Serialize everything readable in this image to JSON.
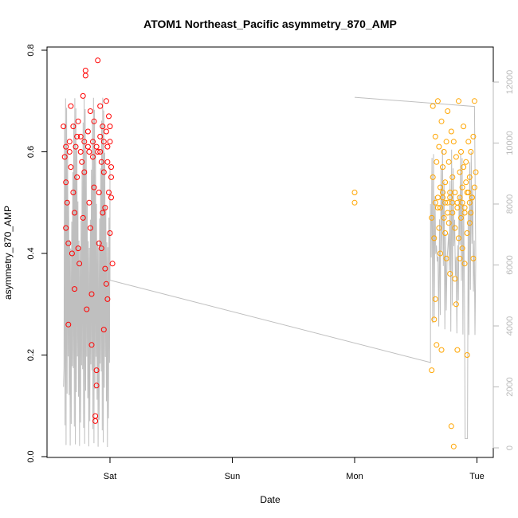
{
  "chart_data": {
    "type": "scatter",
    "title": "ATOM1 Northeast_Pacific asymmetry_870_AMP",
    "xlabel": "Date",
    "ylabel": "asymmetry_870_AMP",
    "x_ticks": [
      {
        "label": "Sat",
        "day": 1
      },
      {
        "label": "Sun",
        "day": 2
      },
      {
        "label": "Mon",
        "day": 3
      },
      {
        "label": "Tue",
        "day": 4
      }
    ],
    "xlim_days": [
      0.5,
      4.05
    ],
    "ylim": [
      0,
      0.8
    ],
    "y_ticks": [
      0.0,
      0.2,
      0.4,
      0.6,
      0.8
    ],
    "y2lim": [
      0,
      12000
    ],
    "y2_ticks": [
      0,
      2000,
      4000,
      6000,
      8000,
      10000,
      12000
    ],
    "y2_color": "#b9b9b9",
    "grid": false,
    "colors": {
      "red_series": "#ff0000",
      "orange_series": "#ffa500",
      "line": "#bfbfbf"
    },
    "series": [
      {
        "color": "#ff0000",
        "points": [
          [
            0.62,
            0.65
          ],
          [
            0.63,
            0.59
          ],
          [
            0.64,
            0.54
          ],
          [
            0.65,
            0.5
          ],
          [
            0.66,
            0.42
          ],
          [
            0.64,
            0.45
          ],
          [
            0.66,
            0.26
          ],
          [
            0.67,
            0.62
          ],
          [
            0.68,
            0.57
          ],
          [
            0.68,
            0.69
          ],
          [
            0.69,
            0.4
          ],
          [
            0.7,
            0.52
          ],
          [
            0.71,
            0.48
          ],
          [
            0.71,
            0.33
          ],
          [
            0.72,
            0.61
          ],
          [
            0.73,
            0.55
          ],
          [
            0.74,
            0.66
          ],
          [
            0.74,
            0.41
          ],
          [
            0.75,
            0.38
          ],
          [
            0.76,
            0.63
          ],
          [
            0.77,
            0.58
          ],
          [
            0.78,
            0.47
          ],
          [
            0.78,
            0.71
          ],
          [
            0.79,
            0.56
          ],
          [
            0.8,
            0.75
          ],
          [
            0.8,
            0.76
          ],
          [
            0.81,
            0.29
          ],
          [
            0.82,
            0.64
          ],
          [
            0.82,
            0.61
          ],
          [
            0.83,
            0.5
          ],
          [
            0.84,
            0.68
          ],
          [
            0.84,
            0.45
          ],
          [
            0.85,
            0.22
          ],
          [
            0.85,
            0.32
          ],
          [
            0.86,
            0.59
          ],
          [
            0.87,
            0.66
          ],
          [
            0.87,
            0.53
          ],
          [
            0.88,
            0.08
          ],
          [
            0.88,
            0.07
          ],
          [
            0.89,
            0.14
          ],
          [
            0.89,
            0.17
          ],
          [
            0.9,
            0.78
          ],
          [
            0.9,
            0.6
          ],
          [
            0.91,
            0.42
          ],
          [
            0.91,
            0.52
          ],
          [
            0.92,
            0.69
          ],
          [
            0.92,
            0.63
          ],
          [
            0.93,
            0.41
          ],
          [
            0.93,
            0.58
          ],
          [
            0.94,
            0.48
          ],
          [
            0.94,
            0.65
          ],
          [
            0.95,
            0.25
          ],
          [
            0.95,
            0.56
          ],
          [
            0.96,
            0.37
          ],
          [
            0.96,
            0.49
          ],
          [
            0.97,
            0.34
          ],
          [
            0.97,
            0.64
          ],
          [
            0.97,
            0.7
          ],
          [
            0.98,
            0.31
          ],
          [
            0.98,
            0.58
          ],
          [
            0.99,
            0.67
          ],
          [
            0.99,
            0.52
          ],
          [
            1.0,
            0.62
          ],
          [
            1.0,
            0.44
          ],
          [
            1.01,
            0.57
          ],
          [
            1.01,
            0.51
          ],
          [
            1.02,
            0.38
          ],
          [
            0.64,
            0.61
          ],
          [
            0.67,
            0.6
          ],
          [
            0.7,
            0.65
          ],
          [
            0.73,
            0.63
          ],
          [
            0.76,
            0.6
          ],
          [
            0.79,
            0.62
          ],
          [
            0.83,
            0.6
          ],
          [
            0.86,
            0.62
          ],
          [
            0.89,
            0.61
          ],
          [
            0.92,
            0.6
          ],
          [
            0.95,
            0.62
          ],
          [
            0.98,
            0.61
          ],
          [
            1.0,
            0.65
          ],
          [
            1.01,
            0.55
          ]
        ]
      },
      {
        "color": "#ffa500",
        "points": [
          [
            3.0,
            0.52
          ],
          [
            3.0,
            0.5
          ],
          [
            3.63,
            0.47
          ],
          [
            3.63,
            0.17
          ],
          [
            3.64,
            0.55
          ],
          [
            3.64,
            0.69
          ],
          [
            3.65,
            0.43
          ],
          [
            3.65,
            0.27
          ],
          [
            3.66,
            0.63
          ],
          [
            3.66,
            0.31
          ],
          [
            3.67,
            0.58
          ],
          [
            3.67,
            0.22
          ],
          [
            3.68,
            0.49
          ],
          [
            3.68,
            0.7
          ],
          [
            3.69,
            0.45
          ],
          [
            3.69,
            0.61
          ],
          [
            3.7,
            0.53
          ],
          [
            3.7,
            0.4
          ],
          [
            3.71,
            0.66
          ],
          [
            3.71,
            0.21
          ],
          [
            3.72,
            0.51
          ],
          [
            3.72,
            0.57
          ],
          [
            3.73,
            0.47
          ],
          [
            3.73,
            0.6
          ],
          [
            3.74,
            0.44
          ],
          [
            3.74,
            0.54
          ],
          [
            3.75,
            0.62
          ],
          [
            3.75,
            0.39
          ],
          [
            3.76,
            0.5
          ],
          [
            3.76,
            0.68
          ],
          [
            3.77,
            0.46
          ],
          [
            3.77,
            0.58
          ],
          [
            3.78,
            0.52
          ],
          [
            3.78,
            0.36
          ],
          [
            3.79,
            0.06
          ],
          [
            3.79,
            0.64
          ],
          [
            3.8,
            0.48
          ],
          [
            3.8,
            0.55
          ],
          [
            3.81,
            0.02
          ],
          [
            3.81,
            0.62
          ],
          [
            3.82,
            0.45
          ],
          [
            3.82,
            0.35
          ],
          [
            3.83,
            0.59
          ],
          [
            3.83,
            0.3
          ],
          [
            3.84,
            0.21
          ],
          [
            3.84,
            0.5
          ],
          [
            3.85,
            0.7
          ],
          [
            3.85,
            0.43
          ],
          [
            3.86,
            0.56
          ],
          [
            3.86,
            0.39
          ],
          [
            3.87,
            0.6
          ],
          [
            3.87,
            0.47
          ],
          [
            3.88,
            0.53
          ],
          [
            3.88,
            0.41
          ],
          [
            3.89,
            0.57
          ],
          [
            3.89,
            0.65
          ],
          [
            3.9,
            0.49
          ],
          [
            3.9,
            0.38
          ],
          [
            3.91,
            0.54
          ],
          [
            3.91,
            0.58
          ],
          [
            3.92,
            0.44
          ],
          [
            3.92,
            0.2
          ],
          [
            3.93,
            0.52
          ],
          [
            3.93,
            0.62
          ],
          [
            3.94,
            0.46
          ],
          [
            3.94,
            0.55
          ],
          [
            3.95,
            0.6
          ],
          [
            3.95,
            0.48
          ],
          [
            3.96,
            0.51
          ],
          [
            3.97,
            0.39
          ],
          [
            3.97,
            0.63
          ],
          [
            3.98,
            0.7
          ],
          [
            3.98,
            0.53
          ],
          [
            3.99,
            0.56
          ],
          [
            3.66,
            0.5
          ],
          [
            3.68,
            0.51
          ],
          [
            3.7,
            0.49
          ],
          [
            3.72,
            0.52
          ],
          [
            3.74,
            0.5
          ],
          [
            3.76,
            0.48
          ],
          [
            3.78,
            0.51
          ],
          [
            3.8,
            0.5
          ],
          [
            3.82,
            0.52
          ],
          [
            3.84,
            0.49
          ],
          [
            3.86,
            0.51
          ],
          [
            3.88,
            0.5
          ],
          [
            3.9,
            0.48
          ],
          [
            3.92,
            0.52
          ],
          [
            3.94,
            0.5
          ],
          [
            3.96,
            0.51
          ]
        ]
      }
    ]
  }
}
